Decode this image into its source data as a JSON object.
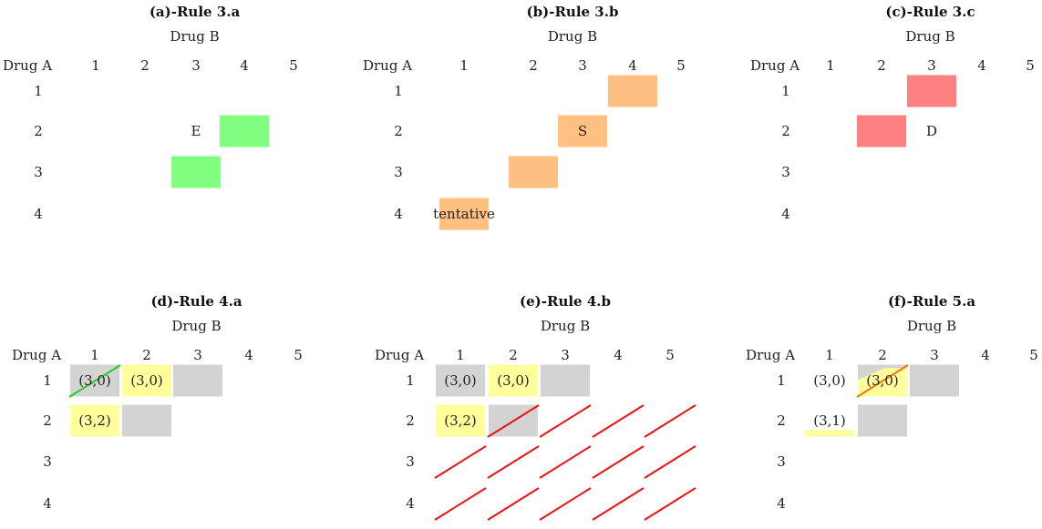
{
  "colors": {
    "green": "#80ff80",
    "orange": "#ffc080",
    "red": "#ff8080",
    "yellow": "#ffff9c",
    "gray": "#d3d3d3",
    "line_green": "#22cc22",
    "line_red": "#ee1111",
    "line_orange": "#ee7711"
  },
  "panels": [
    {
      "title": "(a)-Rule 3.a",
      "col_header": "Drug B",
      "row_header": "Drug A",
      "cols": [
        "1",
        "2",
        "3",
        "4",
        "5"
      ],
      "rows": [
        "1",
        "2",
        "3",
        "4"
      ],
      "cells": [
        {
          "row": 2,
          "col": 4,
          "color": "green",
          "text": ""
        },
        {
          "row": 3,
          "col": 3,
          "color": "green",
          "text": ""
        }
      ],
      "labels": [
        {
          "row": 2,
          "col": 3,
          "text": "E"
        }
      ],
      "lines": []
    },
    {
      "title": "(b)-Rule 3.b",
      "col_header": "Drug B",
      "row_header": "Drug A",
      "cols": [
        "1",
        "2",
        "3",
        "4",
        "5"
      ],
      "rows": [
        "1",
        "2",
        "3",
        "4"
      ],
      "cells": [
        {
          "row": 1,
          "col": 4,
          "color": "orange",
          "text": ""
        },
        {
          "row": 2,
          "col": 3,
          "color": "orange",
          "text": "S"
        },
        {
          "row": 3,
          "col": 2,
          "color": "orange",
          "text": ""
        },
        {
          "row": 4,
          "col": 1,
          "color": "orange",
          "text": "tentative"
        }
      ],
      "labels": [],
      "lines": []
    },
    {
      "title": "(c)-Rule 3.c",
      "col_header": "Drug B",
      "row_header": "Drug A",
      "cols": [
        "1",
        "2",
        "3",
        "4",
        "5"
      ],
      "rows": [
        "1",
        "2",
        "3",
        "4"
      ],
      "cells": [
        {
          "row": 1,
          "col": 3,
          "color": "red",
          "text": ""
        },
        {
          "row": 2,
          "col": 2,
          "color": "red",
          "text": ""
        }
      ],
      "labels": [
        {
          "row": 2,
          "col": 3,
          "text": "D"
        }
      ],
      "lines": []
    },
    {
      "title": "(d)-Rule 4.a",
      "col_header": "Drug B",
      "row_header": "Drug A",
      "cols": [
        "1",
        "2",
        "3",
        "4",
        "5"
      ],
      "rows": [
        "1",
        "2",
        "3",
        "4"
      ],
      "cells": [
        {
          "row": 1,
          "col": 1,
          "color": "gray",
          "text": "(3,0)"
        },
        {
          "row": 1,
          "col": 2,
          "color": "yellow",
          "text": "(3,0)"
        },
        {
          "row": 1,
          "col": 3,
          "color": "gray",
          "text": ""
        },
        {
          "row": 2,
          "col": 1,
          "color": "yellow",
          "text": "(3,2)"
        },
        {
          "row": 2,
          "col": 2,
          "color": "gray",
          "text": ""
        }
      ],
      "labels": [],
      "lines": [
        {
          "row": 1,
          "col": 1,
          "color": "line_green"
        }
      ]
    },
    {
      "title": "(e)-Rule 4.b",
      "col_header": "Drug B",
      "row_header": "Drug A",
      "cols": [
        "1",
        "2",
        "3",
        "4",
        "5"
      ],
      "rows": [
        "1",
        "2",
        "3",
        "4"
      ],
      "cells": [
        {
          "row": 1,
          "col": 1,
          "color": "gray",
          "text": "(3,0)"
        },
        {
          "row": 1,
          "col": 2,
          "color": "yellow",
          "text": "(3,0)"
        },
        {
          "row": 1,
          "col": 3,
          "color": "gray",
          "text": ""
        },
        {
          "row": 2,
          "col": 1,
          "color": "yellow",
          "text": "(3,2)"
        },
        {
          "row": 2,
          "col": 2,
          "color": "gray",
          "text": ""
        }
      ],
      "labels": [],
      "lines": [
        {
          "row": 2,
          "col": 2,
          "color": "line_red"
        },
        {
          "row": 2,
          "col": 3,
          "color": "line_red"
        },
        {
          "row": 2,
          "col": 4,
          "color": "line_red"
        },
        {
          "row": 2,
          "col": 5,
          "color": "line_red"
        },
        {
          "row": 3,
          "col": 1,
          "color": "line_red"
        },
        {
          "row": 3,
          "col": 2,
          "color": "line_red"
        },
        {
          "row": 3,
          "col": 3,
          "color": "line_red"
        },
        {
          "row": 3,
          "col": 4,
          "color": "line_red"
        },
        {
          "row": 3,
          "col": 5,
          "color": "line_red"
        },
        {
          "row": 4,
          "col": 1,
          "color": "line_red"
        },
        {
          "row": 4,
          "col": 2,
          "color": "line_red"
        },
        {
          "row": 4,
          "col": 3,
          "color": "line_red"
        },
        {
          "row": 4,
          "col": 4,
          "color": "line_red"
        },
        {
          "row": 4,
          "col": 5,
          "color": "line_red"
        }
      ]
    },
    {
      "title": "(f)-Rule 5.a",
      "col_header": "Drug B",
      "row_header": "Drug A",
      "cols": [
        "1",
        "2",
        "3",
        "4",
        "5"
      ],
      "rows": [
        "1",
        "2",
        "3",
        "4"
      ],
      "cells": [
        {
          "row": 1,
          "col": 2,
          "color": "gray",
          "text": ""
        },
        {
          "row": 1,
          "col": 3,
          "color": "gray",
          "text": ""
        },
        {
          "row": 2,
          "col": 2,
          "color": "gray",
          "text": ""
        }
      ],
      "partials": [
        {
          "row": 1,
          "col": 2,
          "color": "yellow",
          "part": "lower-left"
        },
        {
          "row": 2,
          "col": 1,
          "color": "yellow",
          "part": "lower-right"
        }
      ],
      "labels": [
        {
          "row": 1,
          "col": 1,
          "text": "(3,0)"
        },
        {
          "row": 1,
          "col": 2,
          "text": "(3,0)"
        },
        {
          "row": 2,
          "col": 1,
          "text": "(3,1)"
        }
      ],
      "lines": [
        {
          "row": 1,
          "col": 2,
          "color": "line_orange"
        }
      ]
    }
  ]
}
